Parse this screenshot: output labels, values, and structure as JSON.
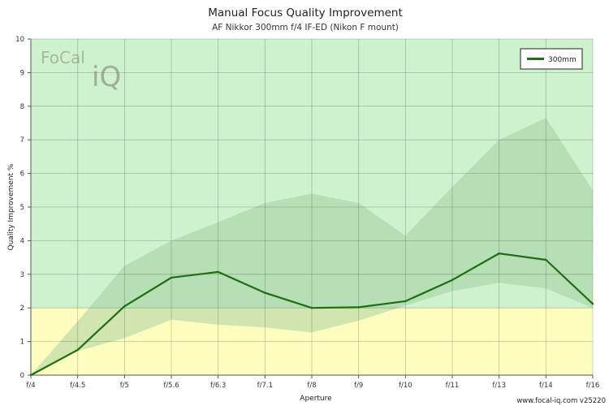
{
  "chart_data": {
    "type": "line",
    "title": "Manual Focus Quality Improvement",
    "subtitle": "AF Nikkor 300mm f/4 IF-ED (Nikon F mount)",
    "xlabel": "Aperture",
    "ylabel": "Quality Improvement %",
    "categories": [
      "f/4",
      "f/4.5",
      "f/5",
      "f/5.6",
      "f/6.3",
      "f/7.1",
      "f/8",
      "f/9",
      "f/10",
      "f/11",
      "f/13",
      "f/14",
      "f/16"
    ],
    "ylim": [
      0,
      10
    ],
    "yticks": [
      "0",
      "1",
      "2",
      "3",
      "4",
      "5",
      "6",
      "7",
      "8",
      "9",
      "10"
    ],
    "grid": true,
    "legend_position": "top-right",
    "series": [
      {
        "name": "300mm",
        "color": "#1f6e12",
        "values": [
          0.0,
          0.75,
          2.05,
          2.9,
          3.07,
          2.45,
          2.0,
          2.02,
          2.2,
          2.83,
          3.62,
          3.43,
          2.12
        ]
      }
    ],
    "range_band": {
      "upper": [
        0.0,
        1.6,
        3.25,
        4.0,
        4.55,
        5.12,
        5.4,
        5.12,
        4.15,
        5.6,
        7.0,
        7.65,
        5.5
      ],
      "lower": [
        0.0,
        0.72,
        1.1,
        1.65,
        1.5,
        1.42,
        1.27,
        1.62,
        2.07,
        2.5,
        2.75,
        2.58,
        2.0
      ]
    },
    "zones": [
      {
        "from": 0,
        "to": 2,
        "color": "#fdfdc0"
      },
      {
        "from": 2,
        "to": 10,
        "color": "#cdf2cd"
      }
    ],
    "band_color": "#9bc79b"
  },
  "logo": {
    "text_a": "FoCal",
    "text_b": "iQ"
  },
  "footer": "www.focal-iq.com  v25220"
}
